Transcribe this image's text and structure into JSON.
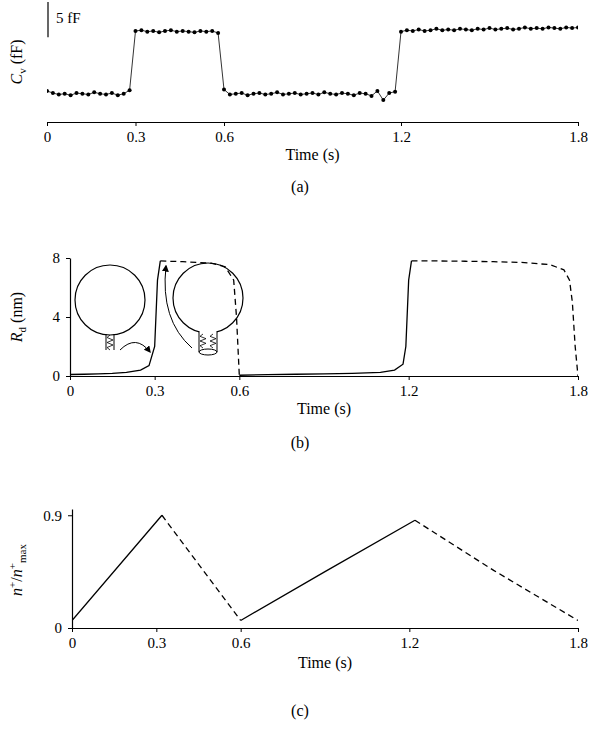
{
  "chart_data": [
    {
      "type": "line",
      "title": "(a)",
      "x_label": "Time (s)",
      "y_label": "Cv (fF)",
      "xlim": [
        0,
        1.8
      ],
      "ylim": [
        -4,
        13
      ],
      "xticks": [
        0,
        0.3,
        0.6,
        1.2,
        1.8
      ],
      "tick_labels": "x",
      "scale_bar": {
        "value": 5,
        "label": "5 fF"
      },
      "x": [
        0,
        0.02,
        0.04,
        0.06,
        0.08,
        0.1,
        0.12,
        0.14,
        0.16,
        0.18,
        0.2,
        0.22,
        0.24,
        0.26,
        0.28,
        0.3,
        0.32,
        0.34,
        0.36,
        0.38,
        0.4,
        0.42,
        0.44,
        0.46,
        0.48,
        0.5,
        0.52,
        0.54,
        0.56,
        0.58,
        0.6,
        0.62,
        0.64,
        0.66,
        0.68,
        0.7,
        0.72,
        0.74,
        0.76,
        0.78,
        0.8,
        0.82,
        0.84,
        0.86,
        0.88,
        0.9,
        0.92,
        0.94,
        0.96,
        0.98,
        1,
        1.02,
        1.04,
        1.06,
        1.08,
        1.1,
        1.12,
        1.14,
        1.16,
        1.18,
        1.2,
        1.22,
        1.24,
        1.26,
        1.28,
        1.3,
        1.32,
        1.34,
        1.36,
        1.38,
        1.4,
        1.42,
        1.44,
        1.46,
        1.48,
        1.5,
        1.52,
        1.54,
        1.56,
        1.58,
        1.6,
        1.62,
        1.64,
        1.66,
        1.68,
        1.7,
        1.72,
        1.74,
        1.76,
        1.78,
        1.8
      ],
      "series": [
        {
          "color": "#000000",
          "marker": "circle",
          "line_style": "solid",
          "values": [
            0.4,
            0.1,
            -0.1,
            0.0,
            -0.2,
            0.1,
            0.0,
            -0.1,
            0.2,
            0.0,
            -0.1,
            0.1,
            -0.2,
            0.0,
            0.5,
            8.9,
            9.0,
            8.8,
            8.9,
            8.7,
            8.9,
            9.0,
            8.8,
            8.9,
            8.8,
            8.7,
            8.9,
            8.8,
            8.9,
            8.6,
            0.6,
            -0.1,
            0.0,
            0.1,
            -0.2,
            0.0,
            0.1,
            -0.1,
            0.0,
            0.2,
            -0.1,
            0.0,
            0.1,
            -0.1,
            0.0,
            0.1,
            -0.1,
            0.2,
            0.0,
            -0.1,
            0.1,
            0.0,
            -0.2,
            0.1,
            0.0,
            -0.3,
            0.4,
            -0.9,
            0.1,
            0.3,
            8.8,
            9.0,
            8.9,
            9.1,
            8.9,
            9.0,
            9.2,
            9.0,
            9.1,
            9.0,
            9.2,
            9.1,
            9.0,
            9.2,
            9.1,
            9.3,
            9.1,
            9.2,
            9.3,
            9.1,
            9.2,
            9.4,
            9.2,
            9.3,
            9.2,
            9.4,
            9.3,
            9.2,
            9.4,
            9.3,
            9.4
          ]
        }
      ]
    },
    {
      "type": "line",
      "title": "(b)",
      "x_label": "Time (s)",
      "y_label": "Rd (nm)",
      "xlim": [
        0,
        1.8
      ],
      "ylim": [
        0,
        8
      ],
      "xticks": [
        0,
        0.3,
        0.6,
        1.2,
        1.8
      ],
      "yticks": [
        0,
        4,
        8
      ],
      "x": [
        0,
        0.05,
        0.1,
        0.15,
        0.2,
        0.25,
        0.28,
        0.3,
        0.31,
        0.32,
        0.4,
        0.5,
        0.55,
        0.58,
        0.59,
        0.6,
        0.7,
        0.8,
        0.9,
        1.0,
        1.1,
        1.15,
        1.18,
        1.19,
        1.2,
        1.21,
        1.3,
        1.4,
        1.5,
        1.6,
        1.7,
        1.75,
        1.77,
        1.78,
        1.79,
        1.8
      ],
      "series": [
        {
          "color": "#000000",
          "line_style": "solid",
          "values": [
            0.1,
            0.12,
            0.15,
            0.18,
            0.25,
            0.4,
            0.7,
            2.0,
            6.5,
            7.8,
            null,
            null,
            null,
            null,
            null,
            0.05,
            0.1,
            0.12,
            0.15,
            0.18,
            0.25,
            0.4,
            0.8,
            2.0,
            6.5,
            7.8,
            null,
            null,
            null,
            null,
            null,
            null,
            null,
            null,
            null,
            null
          ]
        },
        {
          "color": "#000000",
          "line_style": "dashed",
          "values": [
            null,
            null,
            null,
            null,
            null,
            null,
            null,
            null,
            null,
            7.8,
            7.75,
            7.65,
            7.4,
            6.5,
            4.0,
            0,
            null,
            null,
            null,
            null,
            null,
            null,
            null,
            null,
            null,
            7.8,
            7.8,
            7.78,
            7.75,
            7.7,
            7.55,
            7.2,
            6.5,
            5.0,
            2.0,
            0
          ]
        }
      ]
    },
    {
      "type": "line",
      "title": "(c)",
      "x_label": "Time (s)",
      "y_label": "n+/n+max",
      "xlim": [
        0,
        1.8
      ],
      "ylim": [
        0,
        0.95
      ],
      "xticks": [
        0,
        0.3,
        0.6,
        1.2,
        1.8
      ],
      "yticks": [
        0,
        0.9
      ],
      "x": [
        0,
        0.32,
        0.46,
        0.6,
        0.9,
        1.22,
        1.5,
        1.8
      ],
      "series": [
        {
          "color": "#000000",
          "line_style": "solid",
          "values": [
            0.06,
            0.9,
            null,
            0.06,
            0.45,
            0.86,
            null,
            null
          ]
        },
        {
          "color": "#000000",
          "line_style": "dashed",
          "values": [
            null,
            0.9,
            0.48,
            0.06,
            null,
            0.86,
            0.46,
            0.06
          ]
        }
      ]
    }
  ]
}
